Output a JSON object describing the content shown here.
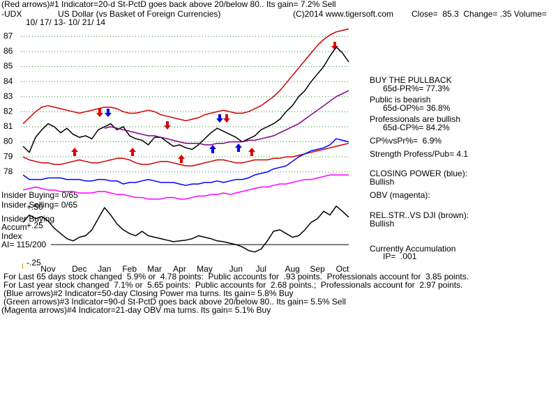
{
  "header": {
    "line1": "(Red arrows)#1 Indicator=20-d St-PctD goes back above 20/below 80.. Its gain= 7.2% Sell",
    "symbol": "-UDX",
    "name": "US Dollar (vs Basket of Foreign Currencies)",
    "copyright": "(C)2014 www.tigersoft.com",
    "quote": "Close=  85.3  Change= .35 Volume=",
    "dates": "10/ 17/ 13- 10/ 21/ 14"
  },
  "chart_data": [
    {
      "type": "line",
      "yticks": [
        78,
        79,
        80,
        81,
        82,
        83,
        84,
        85,
        86,
        87
      ],
      "ylim": [
        76,
        87.8
      ],
      "grid": true,
      "series": [
        {
          "color": "#000000",
          "values": [
            79.7,
            79.3,
            80.3,
            80.8,
            81.2,
            81.0,
            80.6,
            80.9,
            80.5,
            80.3,
            80.4,
            80.2,
            80.8,
            81.0,
            81.2,
            80.8,
            81.0,
            80.4,
            80.2,
            80.1,
            79.8,
            80.3,
            80.3,
            80.0,
            79.7,
            79.8,
            79.6,
            79.5,
            79.8,
            80.2,
            80.6,
            80.9,
            80.7,
            80.5,
            80.3,
            80.0,
            80.2,
            80.4,
            80.8,
            81.0,
            81.2,
            81.5,
            82.0,
            82.4,
            83.0,
            83.4,
            84.0,
            84.5,
            85.0,
            85.7,
            86.3,
            85.9,
            85.3
          ]
        },
        {
          "color": "#cc0000",
          "values": [
            81.2,
            81.6,
            82.0,
            82.3,
            82.4,
            82.3,
            82.2,
            82.1,
            82.0,
            81.9,
            82.0,
            82.1,
            82.2,
            82.3,
            82.3,
            82.2,
            82.0,
            81.9,
            81.9,
            82.0,
            82.1,
            82.0,
            81.8,
            81.7,
            81.6,
            81.5,
            81.4,
            81.5,
            81.6,
            81.8,
            81.9,
            82.0,
            82.1,
            82.0,
            81.9,
            81.9,
            82.0,
            82.2,
            82.4,
            82.7,
            83.0,
            83.4,
            83.9,
            84.4,
            84.9,
            85.4,
            85.9,
            86.4,
            86.8,
            87.1,
            87.3,
            87.4,
            87.5
          ]
        },
        {
          "color": "#cc0000",
          "values": [
            79.0,
            78.8,
            78.7,
            78.6,
            78.6,
            78.5,
            78.5,
            78.6,
            78.7,
            78.8,
            78.7,
            78.6,
            78.6,
            78.7,
            78.8,
            78.9,
            78.9,
            78.8,
            78.6,
            78.5,
            78.5,
            78.6,
            78.7,
            78.7,
            78.6,
            78.5,
            78.4,
            78.4,
            78.5,
            78.6,
            78.7,
            78.8,
            78.8,
            78.7,
            78.6,
            78.6,
            78.7,
            78.8,
            78.8,
            78.8,
            78.9,
            78.9,
            79.0,
            79.0,
            79.1,
            79.2,
            79.3,
            79.4,
            79.5,
            79.6,
            79.7,
            79.8,
            79.9
          ]
        },
        {
          "color": "#800080",
          "values": [
            null,
            null,
            null,
            null,
            null,
            null,
            null,
            null,
            null,
            null,
            null,
            null,
            null,
            80.9,
            81.0,
            80.9,
            80.8,
            80.7,
            80.6,
            80.5,
            80.4,
            80.4,
            80.3,
            80.2,
            80.1,
            80.0,
            79.9,
            79.9,
            79.9,
            79.8,
            79.8,
            79.9,
            79.9,
            80.0,
            80.0,
            80.0,
            80.1,
            80.1,
            80.2,
            80.3,
            80.4,
            80.6,
            80.8,
            81.0,
            81.2,
            81.5,
            81.8,
            82.1,
            82.4,
            82.7,
            83.0,
            83.2,
            83.4
          ]
        },
        {
          "color": "#0000ff",
          "values": [
            77.8,
            77.5,
            77.5,
            77.5,
            77.6,
            77.6,
            77.6,
            77.5,
            77.5,
            77.5,
            77.4,
            77.4,
            77.5,
            77.5,
            77.4,
            77.4,
            77.2,
            77.3,
            77.3,
            77.4,
            77.5,
            77.4,
            77.3,
            77.3,
            77.3,
            77.2,
            77.1,
            77.2,
            77.2,
            77.3,
            77.3,
            77.4,
            77.3,
            77.4,
            77.5,
            77.5,
            77.6,
            77.8,
            77.9,
            78.0,
            78.2,
            78.3,
            78.4,
            78.7,
            79.0,
            79.2,
            79.4,
            79.5,
            79.6,
            79.8,
            80.2,
            80.1,
            80.0
          ]
        },
        {
          "color": "#ff00ff",
          "values": [
            76.8,
            76.9,
            77.0,
            76.9,
            76.8,
            76.8,
            76.7,
            76.7,
            76.7,
            76.6,
            76.6,
            76.6,
            76.7,
            76.7,
            76.6,
            76.5,
            76.5,
            76.4,
            76.3,
            76.3,
            76.2,
            76.2,
            76.2,
            76.3,
            76.3,
            76.2,
            76.2,
            76.3,
            76.4,
            76.4,
            76.5,
            76.5,
            76.6,
            76.5,
            76.6,
            76.7,
            76.8,
            76.9,
            77.0,
            77.0,
            77.1,
            77.2,
            77.2,
            77.3,
            77.4,
            77.5,
            77.5,
            77.6,
            77.7,
            77.8,
            77.8,
            77.8,
            77.8
          ]
        }
      ]
    },
    {
      "type": "line",
      "categories": [
        null,
        null,
        null,
        null,
        "Nov",
        null,
        null,
        null,
        null,
        "Dec",
        null,
        null,
        null,
        "Jan",
        null,
        null,
        null,
        "Feb",
        null,
        null,
        null,
        "Mar",
        null,
        null,
        null,
        "Apr",
        null,
        null,
        null,
        "May",
        null,
        null,
        null,
        null,
        "Jun",
        null,
        null,
        null,
        "Jul",
        null,
        null,
        null,
        null,
        "Aug",
        null,
        null,
        null,
        "Sep",
        null,
        null,
        null,
        "Oct",
        null
      ],
      "yticks": [
        {
          "value": 0.5,
          "label": "+.50"
        },
        {
          "value": 0.25,
          "label": "+.25"
        },
        {
          "value": -0.25,
          "label": "-.25"
        }
      ],
      "ylim": [
        -0.3,
        0.575
      ],
      "series": [
        {
          "color": "#000000",
          "values": [
            0.3,
            0.4,
            0.35,
            0.38,
            0.32,
            0.22,
            0.15,
            0.08,
            0.05,
            0.1,
            0.12,
            0.2,
            0.35,
            0.5,
            0.4,
            0.28,
            0.2,
            0.15,
            0.12,
            0.18,
            0.12,
            0.1,
            0.08,
            0.06,
            0.04,
            0.05,
            0.06,
            0.08,
            0.12,
            0.1,
            0.08,
            0.05,
            0.04,
            0.02,
            0.0,
            -0.03,
            -0.08,
            -0.1,
            -0.06,
            0.05,
            0.18,
            0.2,
            0.15,
            0.1,
            0.12,
            0.2,
            0.3,
            0.35,
            0.45,
            0.4,
            0.52,
            0.45,
            0.37
          ]
        }
      ]
    }
  ],
  "left_panel": {
    "insider_buying": "Insider Buying= 0/65",
    "insider_selling": "Insider Selling= 0/65",
    "insider_label": "Insider Buying",
    "accum": "Accum",
    "index": "Index",
    "ai": "AI= 115/200"
  },
  "sidebar": {
    "signal": "BUY THE PULLBACK",
    "pr": "65d-PR%= 77.3%",
    "public": "Public is bearish",
    "op": "65d-OP%= 36.8%",
    "professionals": "Professionals are bullish",
    "cp": "65d-CP%= 84.2%",
    "cp_vs_pr": "CP%vsPr%=  6.9%",
    "strength": "Strength Profess/Pub= 4.1",
    "closing_power": "CLOSING POWER (blue):",
    "closing_power_status": "Bullish",
    "obv": "OBV (magenta):",
    "rel_str": "REL.STR..VS DJI (brown):",
    "rel_str_status": "Bullish",
    "accumulation": "Currently Accumulation",
    "ip": "IP=  .001"
  },
  "footer": [
    "For Last 65 days stock changed  5.9% or  4.78 points:  Public accounts for  .93 points.  Professionals account for  3.85 points.",
    "For Last year stock changed  7.1% or  5.65 points:  Public accounts for  2.68 points.;  Professionals account for  2.97 points.",
    "(Blue arrows)#2 Indicator=50-day Closing Power ma turns. Its gain= 5.8% Buy",
    "(Green arrows)#3 Indicator=90-d St-PctD goes back above 20/below 80.. Its gain= 5.5% Sell",
    "(Magenta arrows)#4 Indicator=21-day OBV ma turns. Its gain= 5.1% Buy"
  ]
}
